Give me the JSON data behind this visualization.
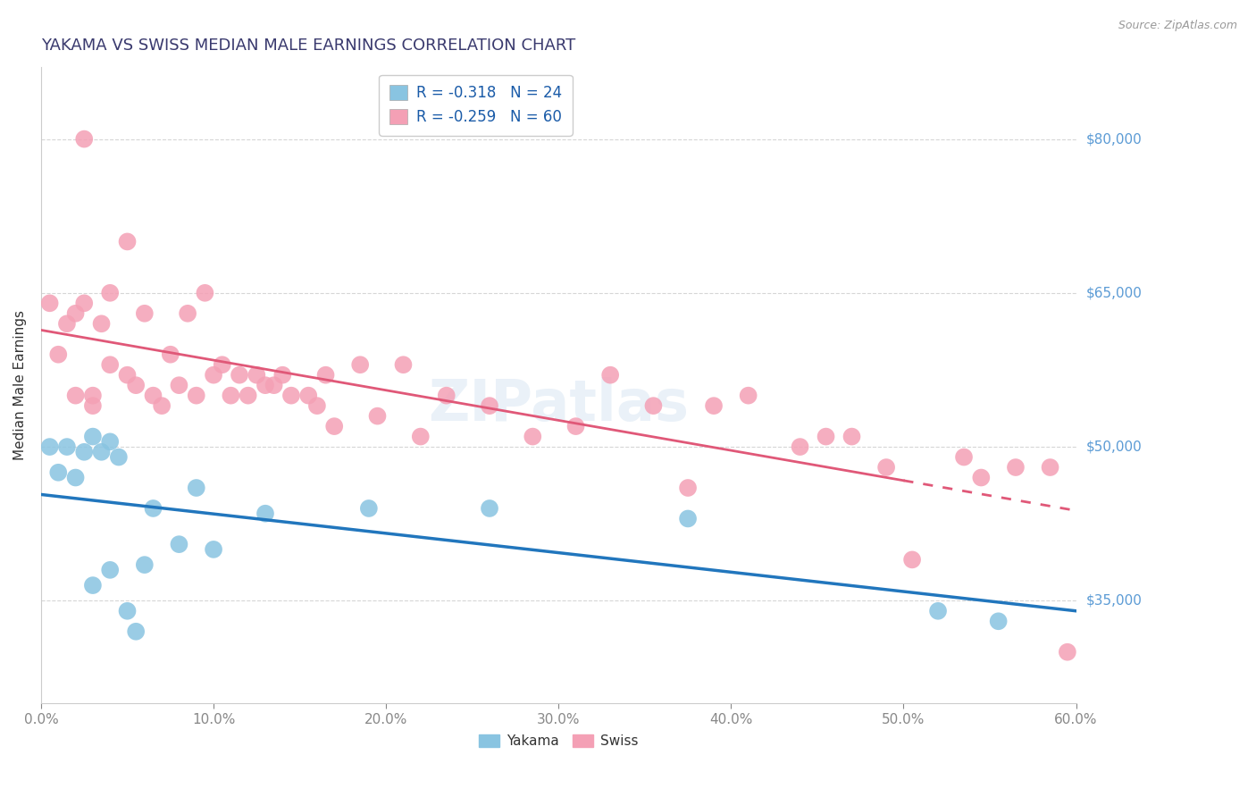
{
  "title": "YAKAMA VS SWISS MEDIAN MALE EARNINGS CORRELATION CHART",
  "source": "Source: ZipAtlas.com",
  "ylabel": "Median Male Earnings",
  "x_min": 0.0,
  "x_max": 0.6,
  "y_min": 25000,
  "y_max": 87000,
  "y_ticks": [
    35000,
    50000,
    65000,
    80000
  ],
  "y_tick_labels": [
    "$35,000",
    "$50,000",
    "$65,000",
    "$80,000"
  ],
  "x_ticks": [
    0.0,
    0.1,
    0.2,
    0.3,
    0.4,
    0.5,
    0.6
  ],
  "x_tick_labels": [
    "0.0%",
    "10.0%",
    "20.0%",
    "30.0%",
    "40.0%",
    "50.0%",
    "60.0%"
  ],
  "yakama_color": "#89c4e1",
  "swiss_color": "#f4a0b5",
  "yakama_R": -0.318,
  "yakama_N": 24,
  "swiss_R": -0.259,
  "swiss_N": 60,
  "yakama_line_color": "#2176bd",
  "swiss_line_color": "#e05878",
  "watermark": "ZIPatlas",
  "yakama_x": [
    0.005,
    0.01,
    0.015,
    0.02,
    0.025,
    0.03,
    0.03,
    0.035,
    0.04,
    0.04,
    0.045,
    0.05,
    0.055,
    0.06,
    0.065,
    0.08,
    0.09,
    0.1,
    0.13,
    0.19,
    0.26,
    0.375,
    0.52,
    0.555
  ],
  "yakama_y": [
    50000,
    47500,
    50000,
    47000,
    49500,
    36500,
    51000,
    49500,
    38000,
    50500,
    49000,
    34000,
    32000,
    38500,
    44000,
    40500,
    46000,
    40000,
    43500,
    44000,
    44000,
    43000,
    34000,
    33000
  ],
  "swiss_x": [
    0.005,
    0.01,
    0.015,
    0.02,
    0.02,
    0.025,
    0.025,
    0.03,
    0.03,
    0.035,
    0.04,
    0.04,
    0.05,
    0.05,
    0.055,
    0.06,
    0.065,
    0.07,
    0.075,
    0.08,
    0.085,
    0.09,
    0.095,
    0.1,
    0.105,
    0.11,
    0.115,
    0.12,
    0.125,
    0.13,
    0.135,
    0.14,
    0.145,
    0.155,
    0.16,
    0.165,
    0.17,
    0.185,
    0.195,
    0.21,
    0.22,
    0.235,
    0.26,
    0.285,
    0.31,
    0.33,
    0.355,
    0.375,
    0.39,
    0.41,
    0.44,
    0.455,
    0.47,
    0.49,
    0.505,
    0.535,
    0.545,
    0.565,
    0.585,
    0.595
  ],
  "swiss_y": [
    64000,
    59000,
    62000,
    55000,
    63000,
    64000,
    80000,
    54000,
    55000,
    62000,
    58000,
    65000,
    57000,
    70000,
    56000,
    63000,
    55000,
    54000,
    59000,
    56000,
    63000,
    55000,
    65000,
    57000,
    58000,
    55000,
    57000,
    55000,
    57000,
    56000,
    56000,
    57000,
    55000,
    55000,
    54000,
    57000,
    52000,
    58000,
    53000,
    58000,
    51000,
    55000,
    54000,
    51000,
    52000,
    57000,
    54000,
    46000,
    54000,
    55000,
    50000,
    51000,
    51000,
    48000,
    39000,
    49000,
    47000,
    48000,
    48000,
    30000
  ]
}
